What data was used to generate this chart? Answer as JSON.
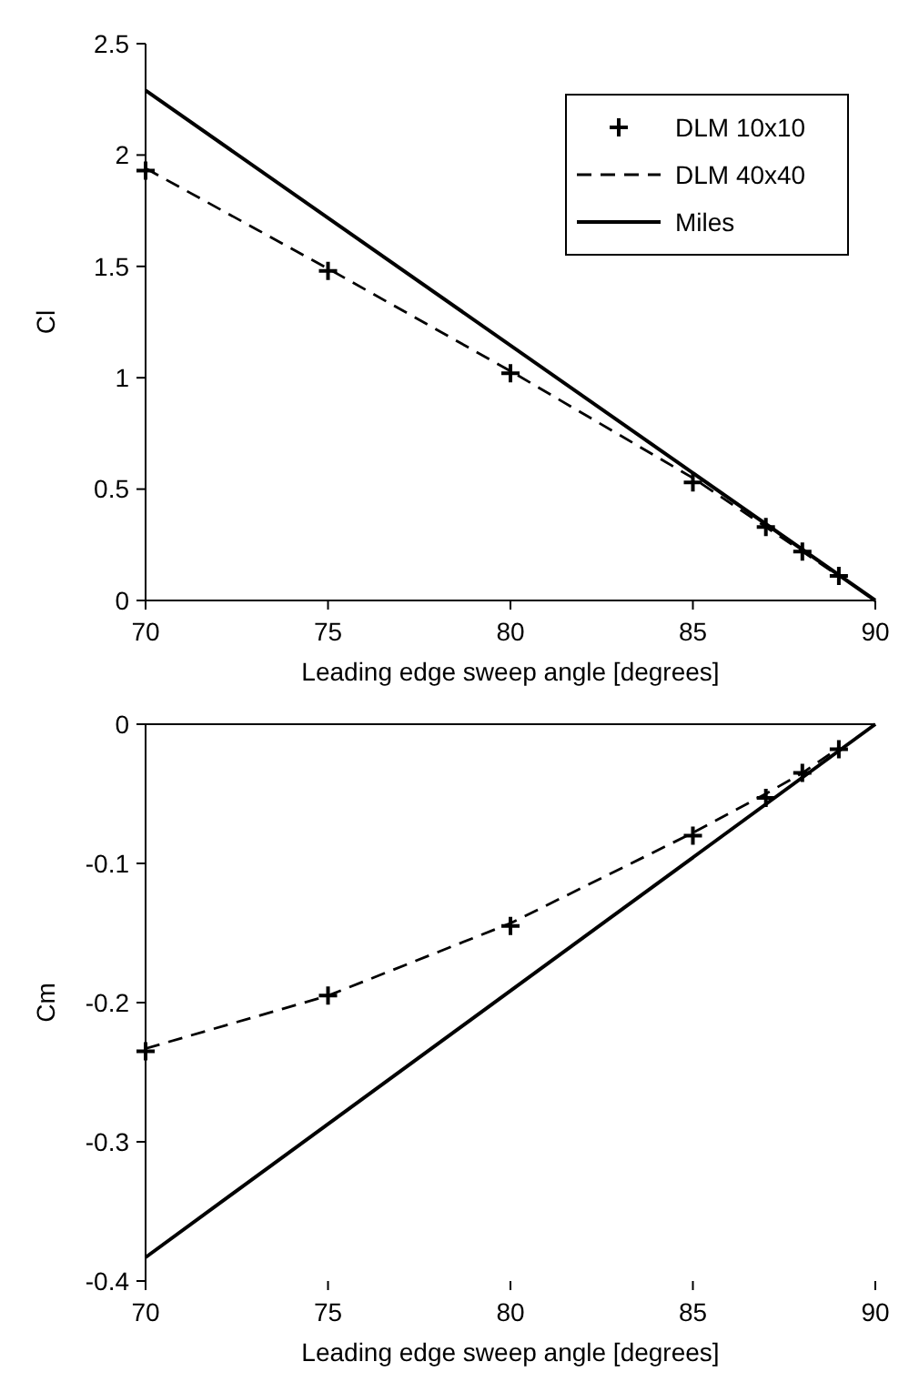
{
  "chart_data": [
    {
      "type": "line",
      "xlabel": "Leading edge sweep angle [degrees]",
      "ylabel": "Cl",
      "xlim": [
        70,
        90
      ],
      "ylim": [
        0,
        2.5
      ],
      "xticks": [
        70,
        75,
        80,
        85,
        90
      ],
      "yticks": [
        0,
        0.5,
        1,
        1.5,
        2,
        2.5
      ],
      "grid": false,
      "legend": "top right",
      "series": [
        {
          "name": "DLM 10x10",
          "type": "scatter",
          "marker": "cross",
          "color": "#000000",
          "x": [
            70,
            75,
            80,
            85,
            87,
            88,
            89
          ],
          "values": [
            1.93,
            1.48,
            1.02,
            0.53,
            0.33,
            0.22,
            0.11
          ]
        },
        {
          "name": "DLM 40x40",
          "type": "line",
          "line_style": "dashed",
          "color": "#000000",
          "x": [
            70,
            75,
            80,
            85,
            87,
            88,
            89
          ],
          "values": [
            1.94,
            1.49,
            1.03,
            0.55,
            0.33,
            0.22,
            0.11
          ]
        },
        {
          "name": "Miles",
          "type": "line",
          "line_style": "solid",
          "color": "#000000",
          "x": [
            70,
            90
          ],
          "values": [
            2.29,
            0
          ]
        }
      ]
    },
    {
      "type": "line",
      "xlabel": "Leading edge sweep angle [degrees]",
      "ylabel": "Cm",
      "xlim": [
        70,
        90
      ],
      "ylim": [
        -0.4,
        0
      ],
      "xticks": [
        70,
        75,
        80,
        85,
        90
      ],
      "yticks": [
        -0.4,
        -0.3,
        -0.2,
        -0.1,
        0
      ],
      "grid": false,
      "legend": false,
      "series": [
        {
          "type": "scatter",
          "marker": "cross",
          "color": "#000000",
          "x": [
            70,
            75,
            80,
            85,
            87,
            88,
            89
          ],
          "values": [
            -0.235,
            -0.195,
            -0.145,
            -0.08,
            -0.053,
            -0.035,
            -0.018
          ]
        },
        {
          "type": "line",
          "line_style": "dashed",
          "color": "#000000",
          "x": [
            70,
            75,
            80,
            85,
            87,
            88,
            89
          ],
          "values": [
            -0.233,
            -0.195,
            -0.143,
            -0.078,
            -0.05,
            -0.035,
            -0.017
          ]
        },
        {
          "type": "line",
          "line_style": "solid",
          "color": "#000000",
          "x": [
            70,
            90
          ],
          "values": [
            -0.383,
            0
          ]
        }
      ]
    }
  ]
}
